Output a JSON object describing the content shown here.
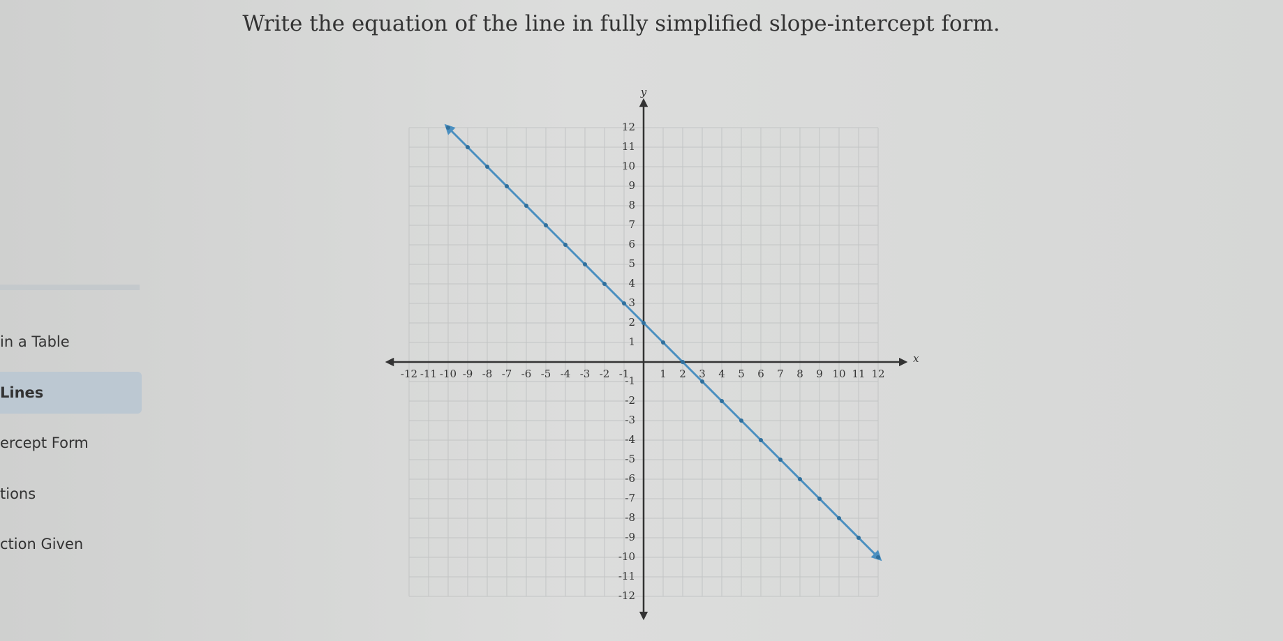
{
  "header": {
    "title": "Write the equation of the line in fully simplified slope-intercept form."
  },
  "sidebar": {
    "items": [
      "in a Table",
      "Lines",
      "ercept Form",
      "tions",
      "ction Given"
    ]
  },
  "chart_data": {
    "type": "line",
    "x_label": "x",
    "y_label": "y",
    "x": [
      -10,
      -9,
      -8,
      -7,
      -6,
      -5,
      -4,
      -3,
      -2,
      -1,
      0,
      1,
      2,
      3,
      4,
      5,
      6,
      7,
      8,
      9,
      10,
      11,
      12
    ],
    "values": [
      12,
      11,
      10,
      9,
      8,
      7,
      6,
      5,
      4,
      3,
      2,
      1,
      0,
      -1,
      -2,
      -3,
      -4,
      -5,
      -6,
      -7,
      -8,
      -9,
      -10
    ],
    "color": "#4a8fc0",
    "xlim": [
      -12,
      12
    ],
    "ylim": [
      -12,
      12
    ],
    "xticks": [
      -12,
      -11,
      -10,
      -9,
      -8,
      -7,
      -6,
      -5,
      -4,
      -3,
      -2,
      -1,
      1,
      2,
      3,
      4,
      5,
      6,
      7,
      8,
      9,
      10,
      11,
      12
    ],
    "yticks": [
      -12,
      -11,
      -10,
      -9,
      -8,
      -7,
      -6,
      -5,
      -4,
      -3,
      -2,
      -1,
      1,
      2,
      3,
      4,
      5,
      6,
      7,
      8,
      9,
      10,
      11,
      12
    ],
    "grid": true
  }
}
